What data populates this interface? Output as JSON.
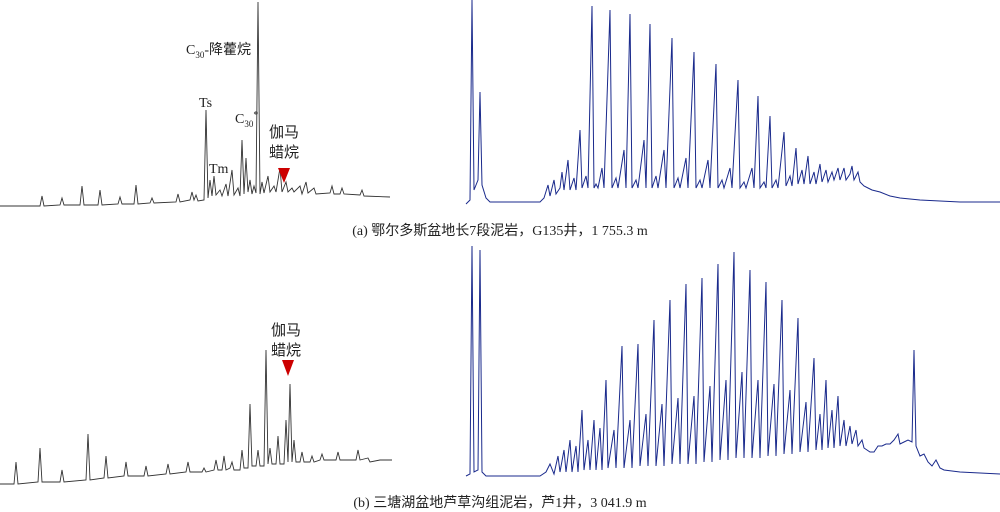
{
  "panel_a": {
    "caption": "(a) 鄂尔多斯盆地长7段泥岩，G135井，1 755.3 m",
    "labels": {
      "norhopane": "C30-降藿烷",
      "ts": "Ts",
      "tm": "Tm",
      "c30": "C30*",
      "gammacerane_line1": "伽马",
      "gammacerane_line2": "蜡烷"
    }
  },
  "panel_b": {
    "caption": "(b) 三塘湖盆地芦草沟组泥岩，芦1井，3 041.9 m",
    "labels": {
      "gammacerane_line1": "伽马",
      "gammacerane_line2": "蜡烷"
    }
  },
  "colors": {
    "biomarker_trace": "#333333",
    "alkane_trace": "#1a2a8c",
    "marker": "#cc0000"
  }
}
